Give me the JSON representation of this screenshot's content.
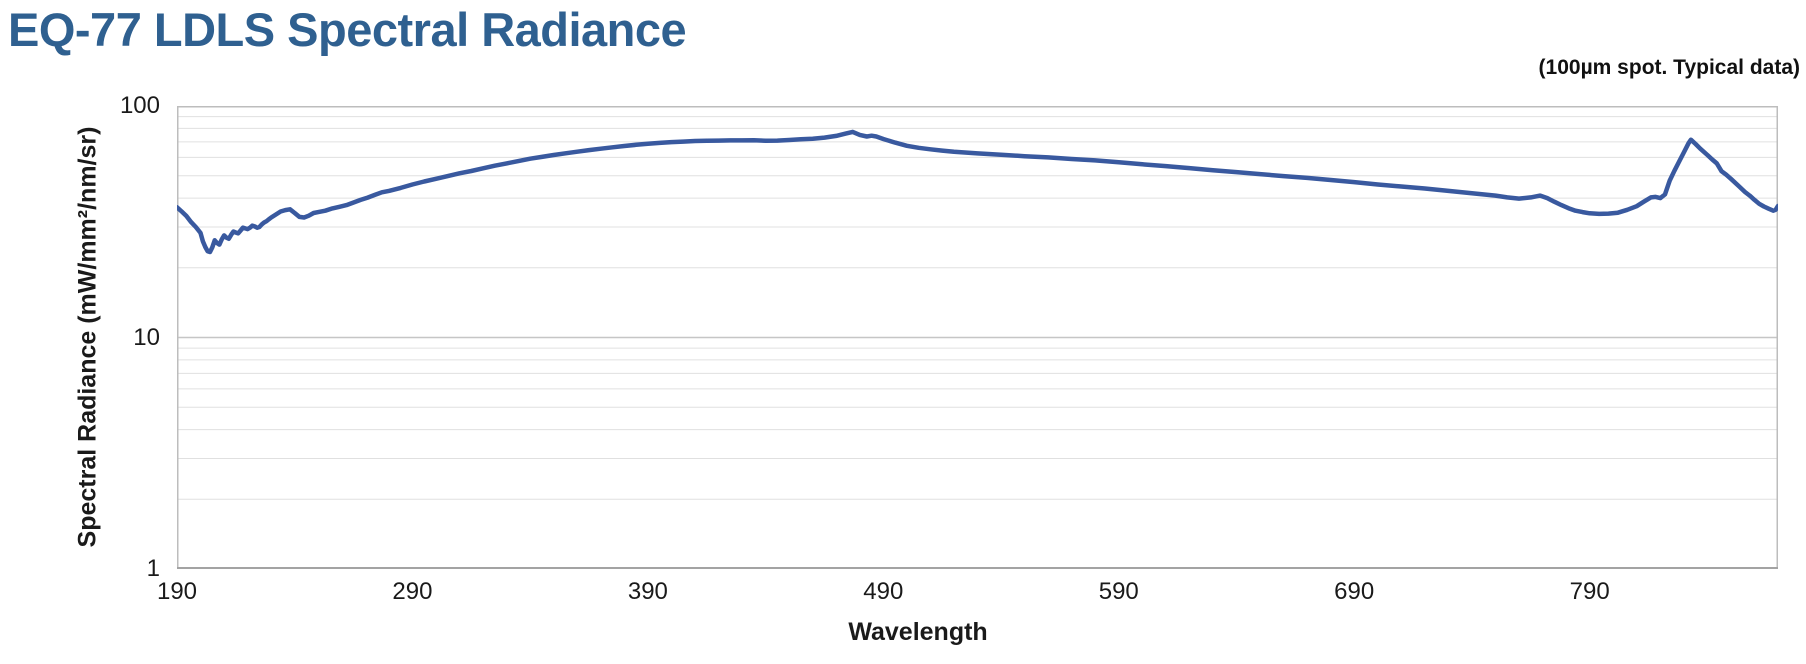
{
  "header": {
    "title": "EQ-77 LDLS Spectral Radiance",
    "annotation": "(100µm spot. Typical data)"
  },
  "colors": {
    "title": "#2F6090",
    "line": "#39599F",
    "grid_minor": "#E0E0E0",
    "grid_major": "#C6C6C6",
    "plot_border": "#BDBDBD",
    "axis_line": "#A3A3A3",
    "axis_text": "#1A1A1A"
  },
  "chart_data": {
    "type": "line",
    "title": "EQ-77 LDLS Spectral Radiance",
    "subtitle": "(100µm spot. Typical data)",
    "xlabel": "Wavelength",
    "ylabel": "Spectral Radiance (mW/mm²/nm/sr)",
    "x_ticks": [
      190,
      290,
      390,
      490,
      590,
      690,
      790
    ],
    "y_ticks": [
      100,
      10,
      1
    ],
    "y_minor_gridlines": [
      2,
      3,
      4,
      5,
      6,
      7,
      8,
      9,
      20,
      30,
      40,
      50,
      60,
      70,
      80,
      90
    ],
    "y_major_gridlines": [
      10
    ],
    "xlim": [
      190,
      870
    ],
    "ylim": [
      1,
      100
    ],
    "y_scale": "log",
    "grid": "horizontal log gridlines on",
    "legend": "none",
    "series": [
      {
        "name": "EQ-77 LDLS spectral radiance (100µm spot, typical)",
        "x": [
          190,
          192,
          194,
          196,
          198,
          200,
          201,
          202,
          203,
          204,
          205,
          206,
          207,
          208,
          209,
          210,
          211,
          212,
          213,
          214,
          215,
          216,
          217,
          218,
          219,
          220,
          221,
          222,
          223,
          224,
          225,
          226,
          227,
          228,
          229,
          230,
          232,
          234,
          236,
          238,
          240,
          242,
          244,
          246,
          248,
          250,
          253,
          256,
          259,
          262,
          265,
          268,
          271,
          274,
          277,
          280,
          285,
          290,
          295,
          300,
          305,
          310,
          315,
          320,
          325,
          330,
          335,
          340,
          345,
          350,
          355,
          360,
          365,
          370,
          375,
          380,
          385,
          390,
          395,
          400,
          405,
          410,
          415,
          420,
          425,
          430,
          435,
          440,
          445,
          450,
          455,
          460,
          465,
          470,
          474,
          477,
          480,
          483,
          485,
          487,
          490,
          495,
          500,
          505,
          510,
          515,
          520,
          530,
          540,
          550,
          560,
          570,
          580,
          590,
          600,
          610,
          620,
          630,
          640,
          650,
          660,
          670,
          680,
          690,
          700,
          710,
          720,
          730,
          740,
          750,
          755,
          760,
          765,
          769,
          772,
          775,
          778,
          781,
          784,
          787,
          790,
          794,
          798,
          802,
          806,
          810,
          813,
          816,
          818,
          820,
          822,
          824,
          826,
          828,
          830,
          832,
          833,
          835,
          837,
          840,
          842,
          844,
          846,
          848,
          850,
          853,
          856,
          858,
          860,
          862,
          864,
          866,
          868,
          869,
          870
        ],
        "y": [
          36.5,
          35.0,
          33.5,
          31.5,
          30.0,
          28.3,
          26.0,
          24.6,
          23.6,
          23.4,
          24.5,
          26.3,
          25.6,
          25.2,
          26.5,
          27.6,
          27.0,
          26.7,
          27.8,
          28.7,
          28.4,
          28.2,
          29.0,
          29.8,
          29.6,
          29.4,
          29.8,
          30.4,
          30.2,
          29.8,
          30.0,
          30.8,
          31.4,
          31.8,
          32.4,
          33.0,
          34.0,
          35.0,
          35.5,
          35.8,
          34.5,
          33.2,
          33.0,
          33.6,
          34.5,
          34.8,
          35.3,
          36.1,
          36.7,
          37.3,
          38.3,
          39.3,
          40.2,
          41.3,
          42.4,
          43.0,
          44.3,
          45.8,
          47.2,
          48.5,
          49.8,
          51.2,
          52.4,
          53.8,
          55.2,
          56.5,
          57.8,
          59.2,
          60.3,
          61.4,
          62.5,
          63.5,
          64.5,
          65.4,
          66.3,
          67.2,
          68.0,
          68.7,
          69.3,
          69.8,
          70.2,
          70.6,
          70.8,
          70.9,
          71.0,
          71.0,
          71.1,
          70.8,
          70.9,
          71.3,
          71.8,
          72.2,
          73.0,
          74.3,
          76.0,
          77.3,
          75.0,
          73.8,
          74.4,
          73.8,
          72.0,
          69.5,
          67.3,
          66.0,
          65.0,
          64.2,
          63.4,
          62.4,
          61.6,
          60.7,
          60.0,
          59.0,
          58.2,
          57.1,
          56.0,
          55.0,
          53.9,
          52.8,
          51.8,
          50.8,
          49.8,
          48.9,
          47.9,
          46.9,
          45.8,
          44.9,
          44.0,
          43.0,
          42.0,
          41.0,
          40.3,
          39.8,
          40.3,
          41.0,
          40.0,
          38.6,
          37.3,
          36.2,
          35.3,
          34.8,
          34.4,
          34.2,
          34.3,
          34.6,
          35.6,
          36.9,
          38.6,
          40.3,
          40.5,
          40.0,
          41.5,
          47.6,
          52.5,
          57.5,
          63.0,
          69.0,
          71.5,
          68.5,
          65.4,
          61.4,
          58.8,
          56.5,
          52.3,
          50.5,
          48.5,
          45.4,
          42.5,
          41.0,
          39.3,
          37.8,
          36.8,
          36.0,
          35.3,
          35.6,
          37.0
        ]
      }
    ]
  }
}
